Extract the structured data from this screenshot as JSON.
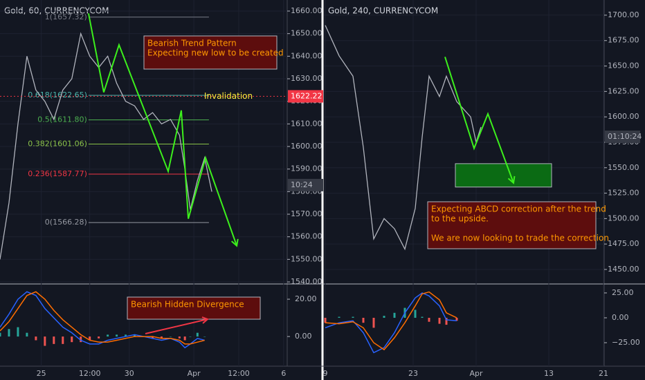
{
  "chart_data": [
    {
      "type": "line",
      "title": "Gold, 60, CURRENCYCOM",
      "xlim": [
        0,
        160
      ],
      "xticks": [
        {
          "value": 23,
          "label": "25"
        },
        {
          "value": 50,
          "label": "12:00"
        },
        {
          "value": 72,
          "label": "30"
        },
        {
          "value": 108,
          "label": "Apr"
        },
        {
          "value": 133,
          "label": "12:00"
        },
        {
          "value": 158,
          "label": "6"
        }
      ],
      "ylim": [
        1539.4,
        1664.9
      ],
      "yticks": [
        {
          "value": 1540,
          "label": "1540.00"
        },
        {
          "value": 1550,
          "label": "1550.00"
        },
        {
          "value": 1560,
          "label": "1560.00"
        },
        {
          "value": 1570,
          "label": "1570.00"
        },
        {
          "value": 1580,
          "label": "1580.00"
        },
        {
          "value": 1590,
          "label": "1590.00"
        },
        {
          "value": 1600,
          "label": "1600.00"
        },
        {
          "value": 1610,
          "label": "1610.00"
        },
        {
          "value": 1620,
          "label": "1620.00"
        },
        {
          "value": 1630,
          "label": "1630.00"
        },
        {
          "value": 1640,
          "label": "1640.00"
        },
        {
          "value": 1650,
          "label": "1650.00"
        },
        {
          "value": 1660,
          "label": "1660.00"
        }
      ],
      "x": [
        0,
        5,
        10,
        15,
        20,
        25,
        30,
        35,
        40,
        45,
        50,
        55,
        60,
        65,
        70,
        75,
        80,
        85,
        90,
        95,
        100,
        103,
        106,
        110,
        114,
        118
      ],
      "series": [
        {
          "color": "#b2b5be",
          "values": [
            1550,
            1575,
            1610,
            1640,
            1625,
            1620,
            1612,
            1625,
            1630,
            1650,
            1640,
            1635,
            1640,
            1628,
            1620,
            1618,
            1612,
            1615,
            1610,
            1612,
            1605,
            1590,
            1572,
            1585,
            1595,
            1580
          ]
        }
      ],
      "pattern": {
        "color": "#3cf01c",
        "x": [
          49.3,
          57.8,
          66.3,
          93.7,
          101,
          104.9,
          114.5,
          131.9
        ],
        "values": [
          1659,
          1624,
          1645,
          1589,
          1616,
          1568,
          1595,
          1556
        ]
      },
      "levels": [
        {
          "value": 1657.32,
          "label": "1(1657.32)",
          "color": "#787b86"
        },
        {
          "value": 1622.65,
          "label": "0.618(1622.65)",
          "color": "#4db6ac"
        },
        {
          "value": 1611.8,
          "label": "0.5(1611.80)",
          "color": "#4caf50"
        },
        {
          "value": 1601.06,
          "label": "0.382(1601.06)",
          "color": "#8bc34a"
        },
        {
          "value": 1587.77,
          "label": "0.236(1587.77)",
          "color": "#f23645"
        },
        {
          "value": 1566.28,
          "label": "0(1566.28)",
          "color": "#9598a1"
        }
      ],
      "invalidation": {
        "value": 1622.22,
        "label": "1622.22",
        "text": "Invalidation",
        "color": "#f23645"
      },
      "countdown": {
        "value": 1582.9,
        "label": "10:24"
      },
      "annotations": [
        {
          "lines": [
            "Bearish Trend Pattern",
            "Expecting new low to be created"
          ]
        },
        {
          "lines": [
            "Bearish Hidden Divergence"
          ]
        }
      ],
      "oscillator": {
        "ylim": [
          -15.9,
          27.8
        ],
        "yticks": [
          {
            "value": 20,
            "label": "20.00"
          },
          {
            "value": 0,
            "label": "0.00"
          }
        ],
        "series": [
          {
            "color": "#2962ff",
            "values": [
              5,
              12,
              20,
              24,
              22,
              15,
              10,
              5,
              2,
              -2,
              -4,
              -4,
              -2,
              -1,
              0,
              1,
              0,
              -1,
              -2,
              -1,
              -3,
              -6,
              -4,
              -1,
              -2
            ]
          },
          {
            "color": "#ff6d00",
            "values": [
              3,
              8,
              15,
              22,
              24,
              20,
              14,
              9,
              5,
              1,
              -2,
              -3,
              -3,
              -2,
              -1,
              0,
              0,
              0,
              -1,
              -1,
              -2,
              -4,
              -4,
              -3,
              -2
            ]
          }
        ],
        "histogram": [
          2,
          4,
          5,
          2,
          -2,
          -5,
          -4,
          -4,
          -3,
          -3,
          -2,
          -1,
          1,
          1,
          1,
          1,
          0,
          -1,
          -1,
          0,
          -1,
          -2,
          0,
          2,
          0
        ]
      }
    },
    {
      "type": "line",
      "title": "Gold, 240, CURRENCYCOM",
      "xlim": [
        0,
        405
      ],
      "xticks": [
        {
          "value": 2,
          "label": "9"
        },
        {
          "value": 129,
          "label": "23"
        },
        {
          "value": 220,
          "label": "Apr"
        },
        {
          "value": 325,
          "label": "13"
        },
        {
          "value": 404,
          "label": "21"
        }
      ],
      "ylim": [
        1436.4,
        1714.9
      ],
      "yticks": [
        {
          "value": 1450,
          "label": "1450.00"
        },
        {
          "value": 1475,
          "label": "1475.00"
        },
        {
          "value": 1500,
          "label": "1500.00"
        },
        {
          "value": 1525,
          "label": "1525.00"
        },
        {
          "value": 1550,
          "label": "1550.00"
        },
        {
          "value": 1575,
          "label": "1575.00"
        },
        {
          "value": 1600,
          "label": "1600.00"
        },
        {
          "value": 1625,
          "label": "1625.00"
        },
        {
          "value": 1650,
          "label": "1650.00"
        },
        {
          "value": 1675,
          "label": "1675.00"
        },
        {
          "value": 1700,
          "label": "1700.00"
        }
      ],
      "x": [
        2,
        22,
        42,
        57,
        72,
        87,
        102,
        117,
        132,
        142,
        152,
        167,
        177,
        192,
        212,
        220,
        227
      ],
      "series": [
        {
          "color": "#b2b5be",
          "values": [
            1690,
            1660,
            1640,
            1570,
            1480,
            1500,
            1490,
            1470,
            1510,
            1580,
            1640,
            1620,
            1640,
            1615,
            1600,
            1575,
            1590
          ]
        }
      ],
      "pattern": {
        "color": "#3cf01c",
        "x": [
          175,
          217,
          237,
          274
        ],
        "values": [
          1659,
          1569,
          1603,
          1535
        ]
      },
      "zone": {
        "x": [
          190,
          329
        ],
        "values": [
          1531,
          1554
        ],
        "color": "#0b6b14"
      },
      "countdown": {
        "value": 1580.4,
        "label": "01:10:24"
      },
      "annotations": [
        {
          "lines": [
            "Expecting ABCD correction after the trend",
            "to the upside.",
            "",
            "We are now looking to trade the correction"
          ]
        }
      ],
      "oscillator": {
        "ylim": [
          -48.6,
          33.3
        ],
        "yticks": [
          {
            "value": 25,
            "label": "25.00"
          },
          {
            "value": 0,
            "label": "0.00"
          },
          {
            "value": -25,
            "label": "−25.00"
          }
        ],
        "series": [
          {
            "color": "#2962ff",
            "values": [
              -10,
              -5,
              -3,
              -15,
              -35,
              -30,
              -15,
              5,
              20,
              25,
              22,
              12,
              -2,
              -3
            ]
          },
          {
            "color": "#ff6d00",
            "values": [
              -5,
              -6,
              -4,
              -10,
              -25,
              -32,
              -20,
              -5,
              12,
              24,
              26,
              18,
              5,
              0
            ]
          }
        ],
        "histogram": [
          -5,
          1,
          1,
          -5,
          -10,
          2,
          5,
          10,
          8,
          1,
          -4,
          -6,
          -7,
          -3
        ]
      }
    }
  ]
}
